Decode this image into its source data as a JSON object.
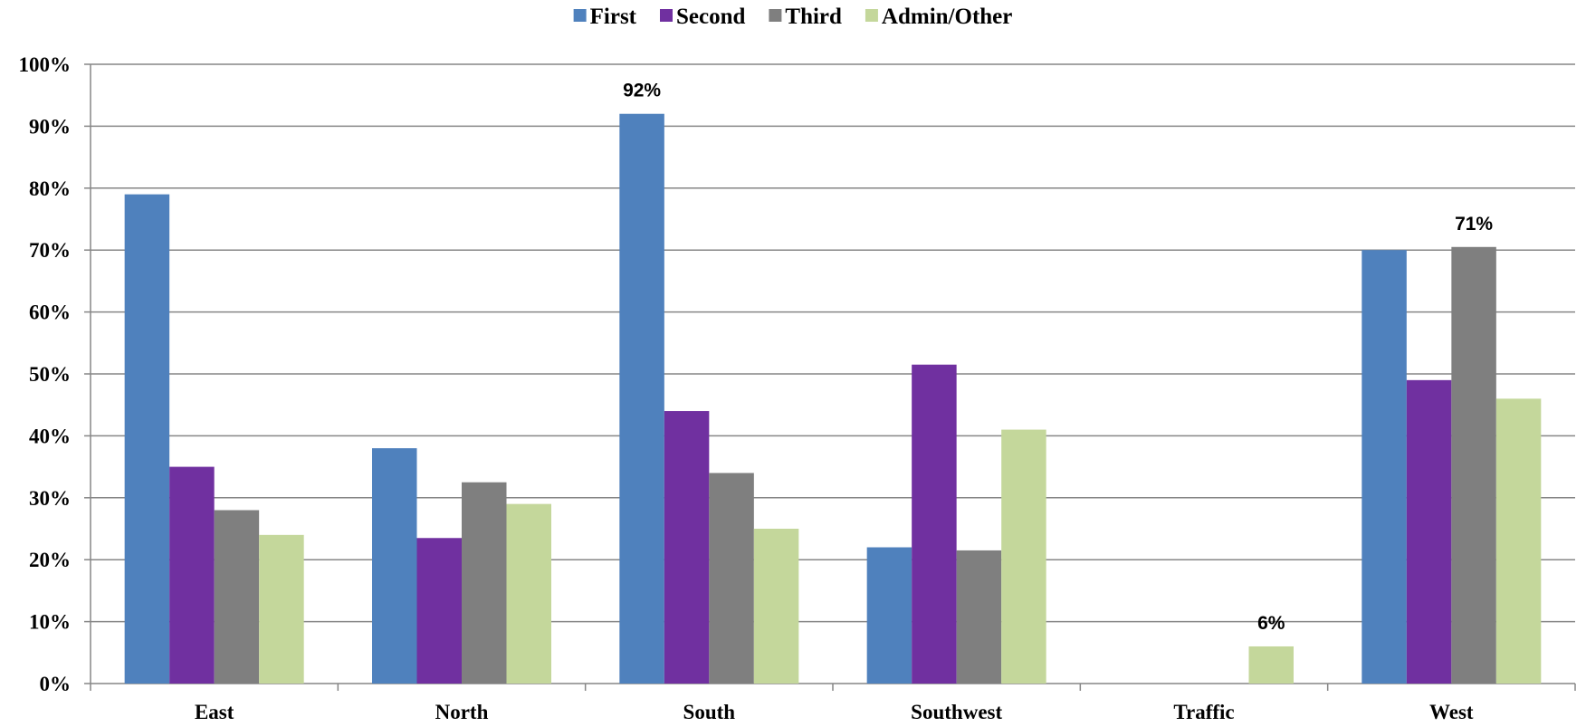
{
  "chart_data": {
    "type": "bar",
    "title": "",
    "xlabel": "",
    "ylabel": "",
    "categories": [
      "East",
      "North",
      "South",
      "Southwest",
      "Traffic",
      "West"
    ],
    "series": [
      {
        "name": "First",
        "color": "#4F81BD",
        "values": [
          0.79,
          0.38,
          0.92,
          0.22,
          0.0,
          0.7
        ]
      },
      {
        "name": "Second",
        "color": "#7030A0",
        "values": [
          0.35,
          0.235,
          0.44,
          0.515,
          0.0,
          0.49
        ]
      },
      {
        "name": "Third",
        "color": "#7F7F7F",
        "values": [
          0.28,
          0.325,
          0.34,
          0.215,
          0.0,
          0.705
        ]
      },
      {
        "name": "Admin/Other",
        "color": "#C4D79B",
        "values": [
          0.24,
          0.29,
          0.25,
          0.41,
          0.06,
          0.46
        ]
      }
    ],
    "ylim": [
      0,
      1
    ],
    "yticks": [
      "0%",
      "10%",
      "20%",
      "30%",
      "40%",
      "50%",
      "60%",
      "70%",
      "80%",
      "90%",
      "100%"
    ],
    "grid": true,
    "legend": "top-center",
    "data_labels": [
      {
        "series": 0,
        "category": 2,
        "text": "92%"
      },
      {
        "series": 3,
        "category": 4,
        "text": "6%"
      },
      {
        "series": 2,
        "category": 5,
        "text": "71%"
      }
    ]
  }
}
